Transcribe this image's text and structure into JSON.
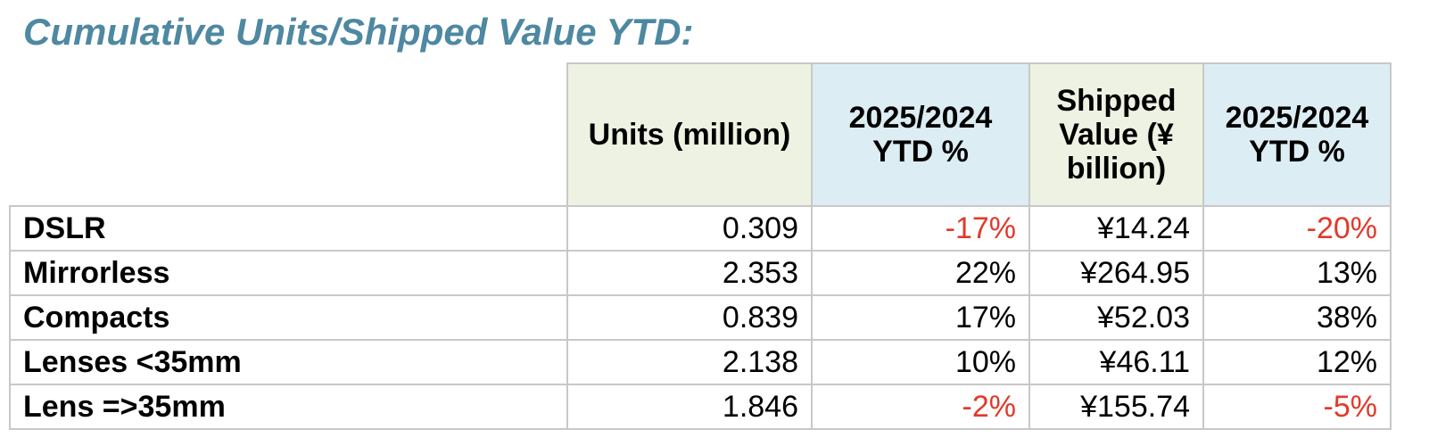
{
  "title": "Cumulative Units/Shipped Value YTD:",
  "colors": {
    "title": "#4e88a1",
    "negative": "#e03a2b",
    "header_green": "#eef2e2",
    "header_blue": "#dcedf3"
  },
  "chart_data": {
    "type": "table",
    "title": "Cumulative Units/Shipped Value YTD:",
    "columns": [
      "",
      "Units (million)",
      "2025/2024 YTD %",
      "Shipped Value (¥ billion)",
      "2025/2024 YTD %"
    ],
    "rows": [
      {
        "label": "DSLR",
        "units": "0.309",
        "units_pct": "-17%",
        "value": "¥14.24",
        "value_pct": "-20%"
      },
      {
        "label": "Mirrorless",
        "units": "2.353",
        "units_pct": "22%",
        "value": "¥264.95",
        "value_pct": "13%"
      },
      {
        "label": "Compacts",
        "units": "0.839",
        "units_pct": "17%",
        "value": "¥52.03",
        "value_pct": "38%"
      },
      {
        "label": "Lenses <35mm",
        "units": "2.138",
        "units_pct": "10%",
        "value": "¥46.11",
        "value_pct": "12%"
      },
      {
        "label": "Lens =>35mm",
        "units": "1.846",
        "units_pct": "-2%",
        "value": "¥155.74",
        "value_pct": "-5%"
      }
    ]
  }
}
